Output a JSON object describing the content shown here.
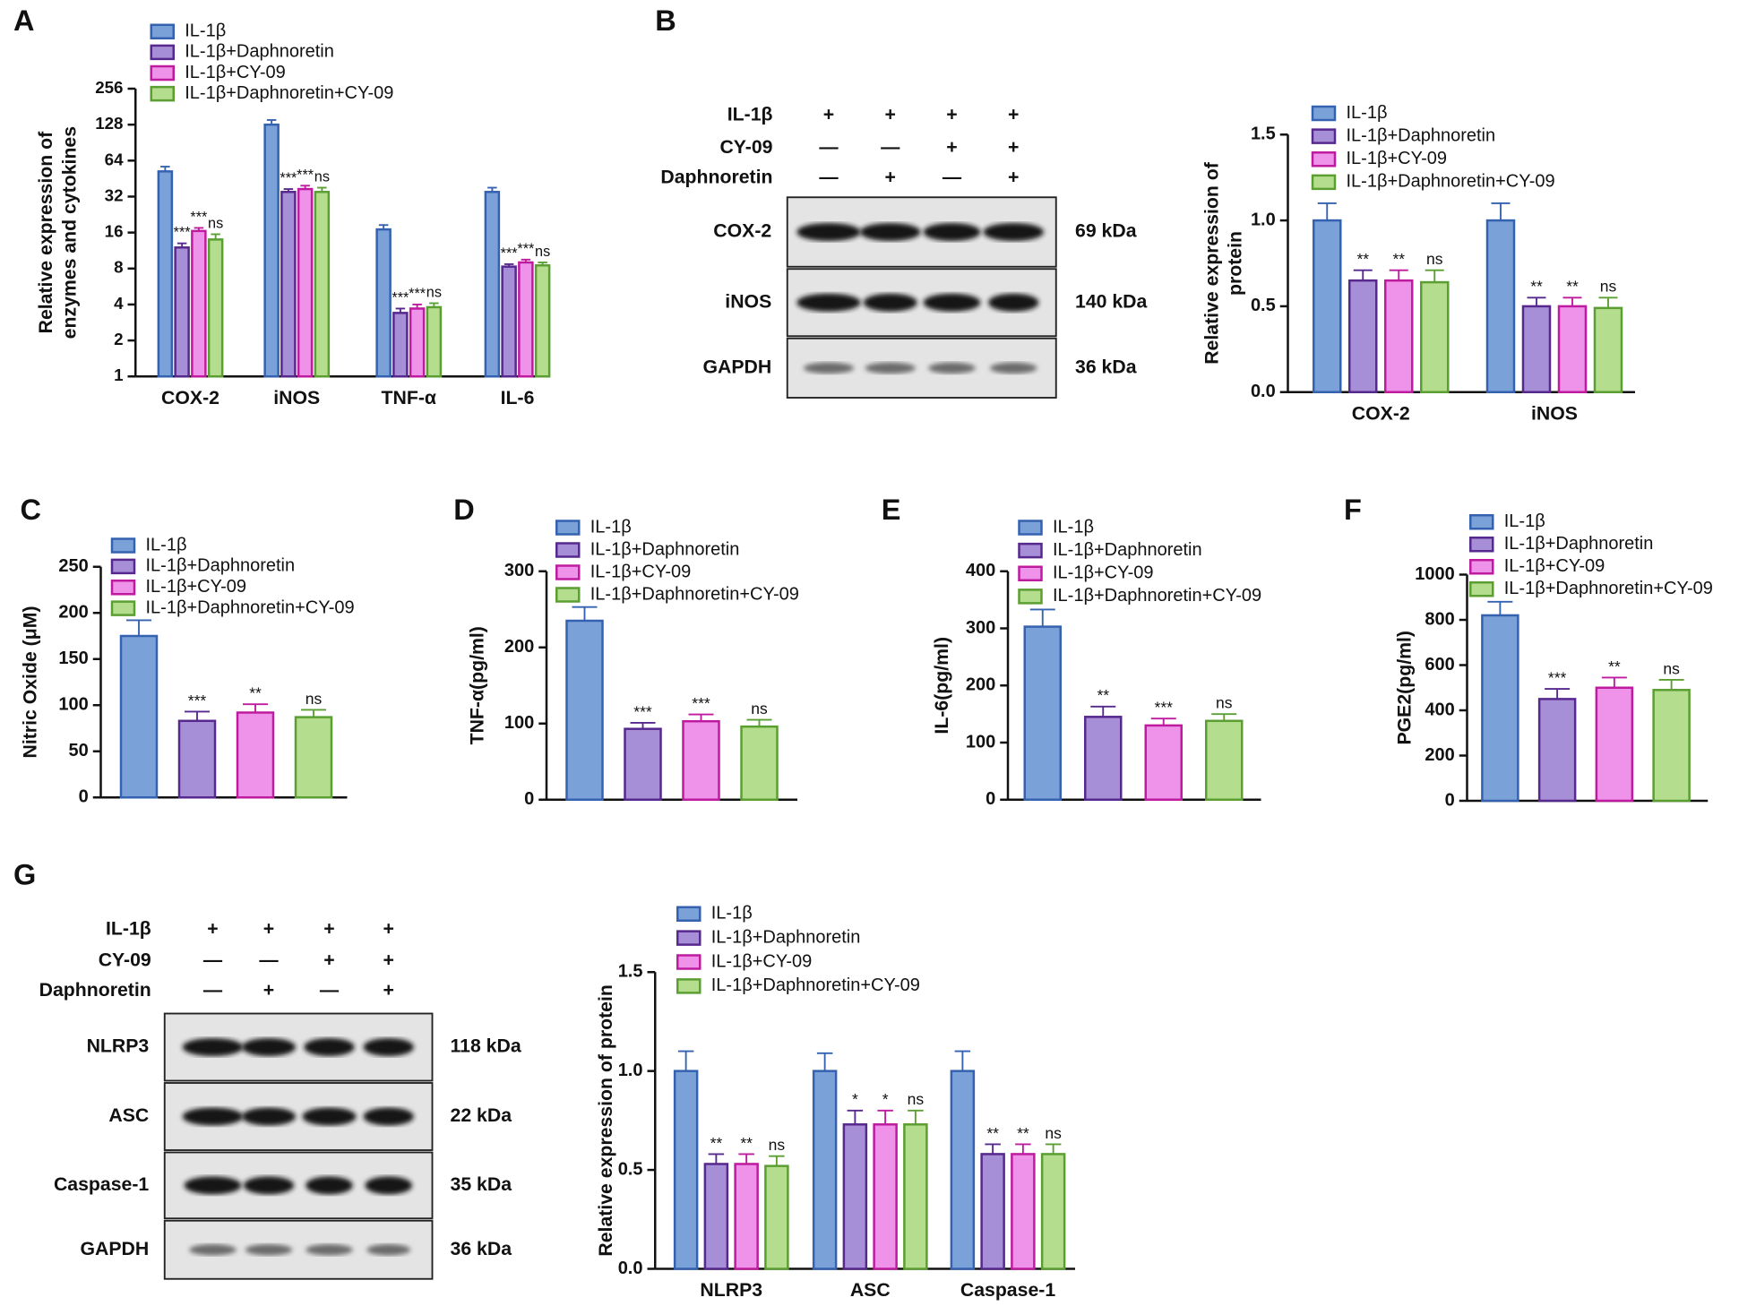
{
  "chart_data": [
    {
      "type": "bar",
      "panel": "A",
      "ylabel": [
        "Relative expression of",
        "enzymes and cytokines"
      ],
      "log_base": 2,
      "categories": [
        "COX-2",
        "iNOS",
        "TNF-α",
        "IL-6"
      ],
      "ylim": [
        1,
        256
      ],
      "yticks": [
        1,
        2,
        4,
        8,
        16,
        32,
        64,
        128,
        256
      ],
      "series": [
        {
          "name": "IL-1β",
          "color": "#7ba2d8",
          "edgecolor": "#3562b0",
          "values": [
            52,
            128,
            17,
            35
          ],
          "errors": [
            5,
            12,
            1.5,
            3
          ]
        },
        {
          "name": "IL-1β+Daphnoretin",
          "color": "#a68fd6",
          "edgecolor": "#57288e",
          "values": [
            12,
            35,
            3.4,
            8.3
          ],
          "errors": [
            1,
            2,
            0.3,
            0.4
          ],
          "annotations": [
            "***",
            "***",
            "***",
            "***"
          ]
        },
        {
          "name": "IL-1β+CY-09",
          "color": "#ef93ea",
          "edgecolor": "#bf1b9f",
          "values": [
            16.5,
            37,
            3.7,
            9
          ],
          "errors": [
            1,
            2.5,
            0.3,
            0.5
          ],
          "annotations": [
            "***",
            "***",
            "***",
            "***"
          ]
        },
        {
          "name": "IL-1β+Daphnoretin+CY-09",
          "color": "#b5dd8e",
          "edgecolor": "#5b9f33",
          "values": [
            14,
            35,
            3.8,
            8.5
          ],
          "errors": [
            1.5,
            3,
            0.3,
            0.5
          ],
          "annotations": [
            "ns",
            "ns",
            "ns",
            "ns"
          ]
        }
      ]
    },
    {
      "type": "bar",
      "ylabel": [
        "Relative  expression of",
        "protein"
      ],
      "categories": [
        "COX-2",
        "iNOS"
      ],
      "ylim": [
        0,
        1.5
      ],
      "yticks": [
        {
          "value": 0,
          "label": "0.0"
        },
        0.5,
        {
          "value": 1,
          "label": "1.0"
        },
        1.5
      ],
      "series": [
        {
          "name": "IL-1β",
          "color": "#7ba2d8",
          "edgecolor": "#3562b0",
          "values": [
            1.0,
            1.0
          ],
          "errors": [
            0.1,
            0.1
          ]
        },
        {
          "name": "IL-1β+Daphnoretin",
          "color": "#a68fd6",
          "edgecolor": "#57288e",
          "values": [
            0.65,
            0.5
          ],
          "errors": [
            0.06,
            0.05
          ],
          "annotations": [
            "**",
            "**"
          ]
        },
        {
          "name": "IL-1β+CY-09",
          "color": "#ef93ea",
          "edgecolor": "#bf1b9f",
          "values": [
            0.65,
            0.5
          ],
          "errors": [
            0.06,
            0.05
          ],
          "annotations": [
            "**",
            "**"
          ]
        },
        {
          "name": "IL-1β+Daphnoretin+CY-09",
          "color": "#b5dd8e",
          "edgecolor": "#5b9f33",
          "values": [
            0.64,
            0.49
          ],
          "errors": [
            0.07,
            0.06
          ],
          "annotations": [
            "ns",
            "ns"
          ]
        }
      ]
    },
    {
      "type": "bar",
      "panel": "C",
      "ylabel": [
        "Nitric Oxide (μM)"
      ],
      "ylim": [
        0,
        250
      ],
      "yticks": [
        0,
        50,
        100,
        150,
        200,
        250
      ],
      "series": [
        {
          "name": "IL-1β",
          "color": "#7ba2d8",
          "edgecolor": "#3562b0",
          "values": [
            175
          ],
          "errors": [
            17
          ]
        },
        {
          "name": "IL-1β+Daphnoretin",
          "color": "#a68fd6",
          "edgecolor": "#57288e",
          "values": [
            83
          ],
          "errors": [
            10
          ],
          "annotations": [
            "***"
          ]
        },
        {
          "name": "IL-1β+CY-09",
          "color": "#ef93ea",
          "edgecolor": "#bf1b9f",
          "values": [
            92
          ],
          "errors": [
            9
          ],
          "annotations": [
            "**"
          ]
        },
        {
          "name": "IL-1β+Daphnoretin+CY-09",
          "color": "#b5dd8e",
          "edgecolor": "#5b9f33",
          "values": [
            87
          ],
          "errors": [
            8
          ],
          "annotations": [
            "ns"
          ]
        }
      ]
    },
    {
      "type": "bar",
      "panel": "D",
      "ylabel": [
        "TNF-α(pg/ml)"
      ],
      "ylim": [
        0,
        300
      ],
      "yticks": [
        0,
        100,
        200,
        300
      ],
      "series": [
        {
          "name": "IL-1β",
          "color": "#7ba2d8",
          "edgecolor": "#3562b0",
          "values": [
            235
          ],
          "errors": [
            18
          ]
        },
        {
          "name": "IL-1β+Daphnoretin",
          "color": "#a68fd6",
          "edgecolor": "#57288e",
          "values": [
            93
          ],
          "errors": [
            8
          ],
          "annotations": [
            "***"
          ]
        },
        {
          "name": "IL-1β+CY-09",
          "color": "#ef93ea",
          "edgecolor": "#bf1b9f",
          "values": [
            103
          ],
          "errors": [
            9
          ],
          "annotations": [
            "***"
          ]
        },
        {
          "name": "IL-1β+Daphnoretin+CY-09",
          "color": "#b5dd8e",
          "edgecolor": "#5b9f33",
          "values": [
            96
          ],
          "errors": [
            9
          ],
          "annotations": [
            "ns"
          ]
        }
      ]
    },
    {
      "type": "bar",
      "panel": "E",
      "ylabel": [
        "IL-6(pg/ml)"
      ],
      "ylim": [
        0,
        400
      ],
      "yticks": [
        0,
        100,
        200,
        300,
        400
      ],
      "series": [
        {
          "name": "IL-1β",
          "color": "#7ba2d8",
          "edgecolor": "#3562b0",
          "values": [
            303
          ],
          "errors": [
            30
          ]
        },
        {
          "name": "IL-1β+Daphnoretin",
          "color": "#a68fd6",
          "edgecolor": "#57288e",
          "values": [
            145
          ],
          "errors": [
            18
          ],
          "annotations": [
            "**"
          ]
        },
        {
          "name": "IL-1β+CY-09",
          "color": "#ef93ea",
          "edgecolor": "#bf1b9f",
          "values": [
            130
          ],
          "errors": [
            12
          ],
          "annotations": [
            "***"
          ]
        },
        {
          "name": "IL-1β+Daphnoretin+CY-09",
          "color": "#b5dd8e",
          "edgecolor": "#5b9f33",
          "values": [
            138
          ],
          "errors": [
            12
          ],
          "annotations": [
            "ns"
          ]
        }
      ]
    },
    {
      "type": "bar",
      "panel": "F",
      "ylabel": [
        "PGE2(pg/ml)"
      ],
      "ylim": [
        0,
        1000
      ],
      "yticks": [
        0,
        200,
        400,
        600,
        800,
        1000
      ],
      "series": [
        {
          "name": "IL-1β",
          "color": "#7ba2d8",
          "edgecolor": "#3562b0",
          "values": [
            820
          ],
          "errors": [
            60
          ]
        },
        {
          "name": "IL-1β+Daphnoretin",
          "color": "#a68fd6",
          "edgecolor": "#57288e",
          "values": [
            450
          ],
          "errors": [
            45
          ],
          "annotations": [
            "***"
          ]
        },
        {
          "name": "IL-1β+CY-09",
          "color": "#ef93ea",
          "edgecolor": "#bf1b9f",
          "values": [
            500
          ],
          "errors": [
            45
          ],
          "annotations": [
            "**"
          ]
        },
        {
          "name": "IL-1β+Daphnoretin+CY-09",
          "color": "#b5dd8e",
          "edgecolor": "#5b9f33",
          "values": [
            490
          ],
          "errors": [
            45
          ],
          "annotations": [
            "ns"
          ]
        }
      ]
    },
    {
      "type": "bar",
      "ylabel": [
        "Relative  expression of protein"
      ],
      "categories": [
        "NLRP3",
        "ASC",
        "Caspase-1"
      ],
      "ylim": [
        0,
        1.5
      ],
      "yticks": [
        {
          "value": 0,
          "label": "0.0"
        },
        0.5,
        {
          "value": 1,
          "label": "1.0"
        },
        1.5
      ],
      "series": [
        {
          "name": "IL-1β",
          "color": "#7ba2d8",
          "edgecolor": "#3562b0",
          "values": [
            1.0,
            1.0,
            1.0
          ],
          "errors": [
            0.1,
            0.09,
            0.1
          ]
        },
        {
          "name": "IL-1β+Daphnoretin",
          "color": "#a68fd6",
          "edgecolor": "#57288e",
          "values": [
            0.53,
            0.73,
            0.58
          ],
          "errors": [
            0.05,
            0.07,
            0.05
          ],
          "annotations": [
            "**",
            "*",
            "**"
          ]
        },
        {
          "name": "IL-1β+CY-09",
          "color": "#ef93ea",
          "edgecolor": "#bf1b9f",
          "values": [
            0.53,
            0.73,
            0.58
          ],
          "errors": [
            0.05,
            0.07,
            0.05
          ],
          "annotations": [
            "**",
            "*",
            "**"
          ]
        },
        {
          "name": "IL-1β+Daphnoretin+CY-09",
          "color": "#b5dd8e",
          "edgecolor": "#5b9f33",
          "values": [
            0.52,
            0.73,
            0.58
          ],
          "errors": [
            0.05,
            0.07,
            0.05
          ],
          "annotations": [
            "ns",
            "ns",
            "ns"
          ]
        }
      ]
    }
  ],
  "blots": [
    {
      "panel": "B",
      "conditions": [
        {
          "label": "IL-1β",
          "marks": [
            "+",
            "+",
            "+",
            "+"
          ]
        },
        {
          "label": "CY-09",
          "marks": [
            "—",
            "—",
            "+",
            "+"
          ]
        },
        {
          "label": "Daphnoretin",
          "marks": [
            "—",
            "+",
            "—",
            "+"
          ]
        }
      ],
      "bands": [
        {
          "label": "COX-2",
          "size": "69 kDa"
        },
        {
          "label": "iNOS",
          "size": "140 kDa"
        },
        {
          "label": "GAPDH",
          "size": "36 kDa"
        }
      ]
    },
    {
      "panel": "G",
      "conditions": [
        {
          "label": "IL-1β",
          "marks": [
            "+",
            "+",
            "+",
            "+"
          ]
        },
        {
          "label": "CY-09",
          "marks": [
            "—",
            "—",
            "+",
            "+"
          ]
        },
        {
          "label": "Daphnoretin",
          "marks": [
            "—",
            "+",
            "—",
            "+"
          ]
        }
      ],
      "bands": [
        {
          "label": "NLRP3",
          "size": "118 kDa"
        },
        {
          "label": "ASC",
          "size": "22 kDa"
        },
        {
          "label": "Caspase-1",
          "size": "35 kDa"
        },
        {
          "label": "GAPDH",
          "size": "36 kDa"
        }
      ]
    }
  ]
}
